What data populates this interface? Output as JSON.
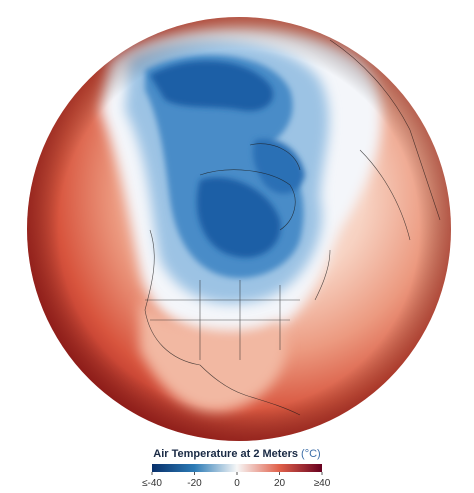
{
  "legend": {
    "title": "Air Temperature at 2 Meters",
    "unit": "(°C)",
    "range": [
      -40,
      40
    ],
    "ticks": [
      {
        "value": -40,
        "label": "≤-40"
      },
      -20,
      0,
      20,
      {
        "value": 40,
        "label": "≥40"
      }
    ]
  }
}
